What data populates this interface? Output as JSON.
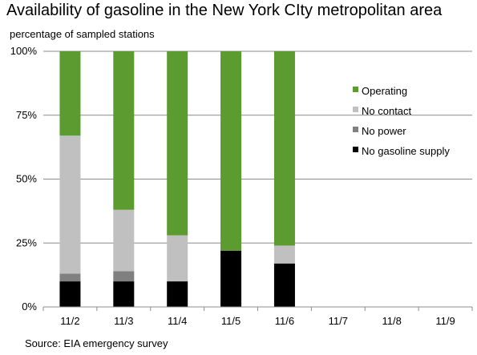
{
  "title": "Availability of gasoline in the New York CIty metropolitan area",
  "subtitle": "percentage of sampled stations",
  "source": "Source: EIA emergency survey",
  "chart_data": {
    "type": "bar",
    "stacked": true,
    "categories": [
      "11/2",
      "11/3",
      "11/4",
      "11/5",
      "11/6",
      "11/7",
      "11/8",
      "11/9"
    ],
    "series": [
      {
        "name": "No gasoline supply",
        "color": "#000000",
        "values": [
          10,
          10,
          10,
          22,
          17,
          null,
          null,
          null
        ]
      },
      {
        "name": "No power",
        "color": "#808080",
        "values": [
          3,
          4,
          0,
          0,
          0,
          null,
          null,
          null
        ]
      },
      {
        "name": "No contact",
        "color": "#c0c0c0",
        "values": [
          54,
          24,
          18,
          0,
          7,
          null,
          null,
          null
        ]
      },
      {
        "name": "Operating",
        "color": "#5b9b2f",
        "values": [
          33,
          62,
          72,
          78,
          76,
          null,
          null,
          null
        ]
      }
    ],
    "legend_order": [
      "Operating",
      "No contact",
      "No power",
      "No gasoline supply"
    ],
    "legend_position": "right",
    "ylim": [
      0,
      100
    ],
    "yticks": [
      "0%",
      "25%",
      "50%",
      "75%",
      "100%"
    ],
    "ytick_values": [
      0,
      25,
      50,
      75,
      100
    ],
    "grid": "horizontal"
  }
}
